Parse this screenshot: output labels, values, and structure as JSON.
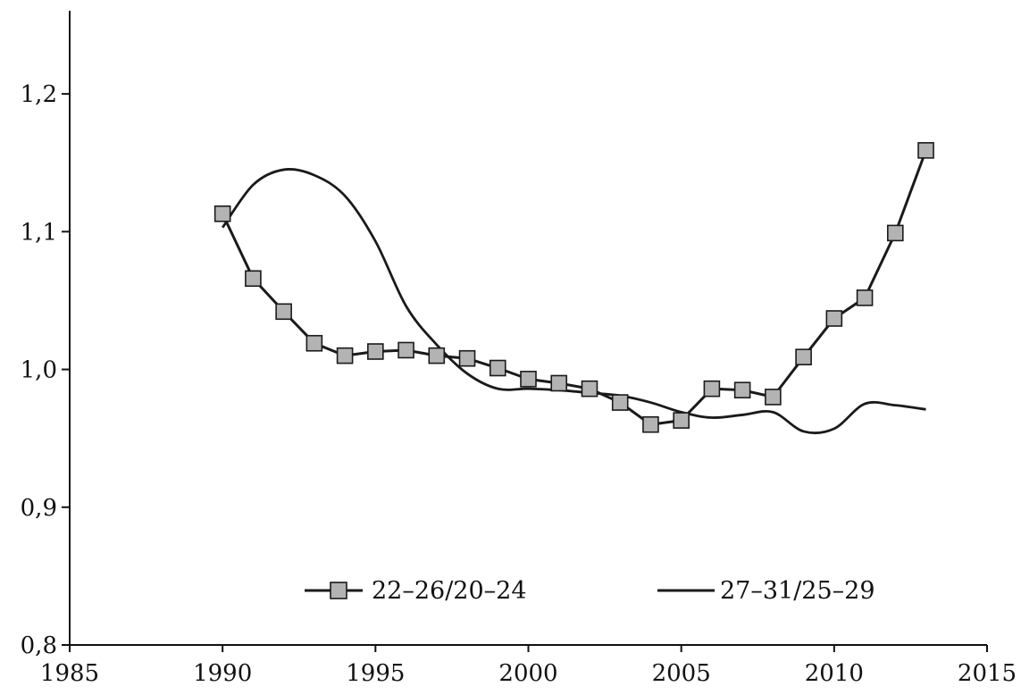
{
  "chart_data": {
    "type": "line",
    "title": "",
    "xlabel": "",
    "ylabel": "",
    "xlim": [
      1985,
      2015
    ],
    "ylim": [
      0.8,
      1.25
    ],
    "x_ticks": [
      1985,
      1990,
      1995,
      2000,
      2005,
      2010,
      2015
    ],
    "x_tick_labels": [
      "1985",
      "1990",
      "1995",
      "2000",
      "2005",
      "2010",
      "2015"
    ],
    "y_ticks": [
      0.8,
      0.9,
      1.0,
      1.1,
      1.2
    ],
    "y_tick_labels": [
      "0,8",
      "0,9",
      "1,0",
      "1,1",
      "1,2"
    ],
    "grid": false,
    "legend_position": "bottom-center",
    "series": [
      {
        "name": "22–26/20–24",
        "marker": "square",
        "color": "#1a1a1a",
        "marker_fill": "#b3b3b3",
        "x": [
          1990,
          1991,
          1992,
          1993,
          1994,
          1995,
          1996,
          1997,
          1998,
          1999,
          2000,
          2001,
          2002,
          2003,
          2004,
          2005,
          2006,
          2007,
          2008,
          2009,
          2010,
          2011,
          2012,
          2013
        ],
        "values": [
          1.113,
          1.066,
          1.042,
          1.019,
          1.01,
          1.013,
          1.014,
          1.01,
          1.008,
          1.001,
          0.993,
          0.99,
          0.986,
          0.976,
          0.96,
          0.963,
          0.986,
          0.985,
          0.98,
          1.009,
          1.037,
          1.052,
          1.099,
          1.159
        ]
      },
      {
        "name": "27–31/25–29",
        "marker": "none",
        "color": "#1a1a1a",
        "x": [
          1990,
          1991,
          1992,
          1993,
          1994,
          1995,
          1996,
          1997,
          1998,
          1999,
          2000,
          2001,
          2002,
          2003,
          2004,
          2005,
          2006,
          2007,
          2008,
          2009,
          2010,
          2011,
          2012,
          2013
        ],
        "values": [
          1.103,
          1.134,
          1.145,
          1.141,
          1.126,
          1.093,
          1.046,
          1.018,
          0.997,
          0.986,
          0.986,
          0.985,
          0.983,
          0.981,
          0.976,
          0.969,
          0.965,
          0.967,
          0.969,
          0.955,
          0.957,
          0.975,
          0.974,
          0.971
        ]
      }
    ]
  }
}
